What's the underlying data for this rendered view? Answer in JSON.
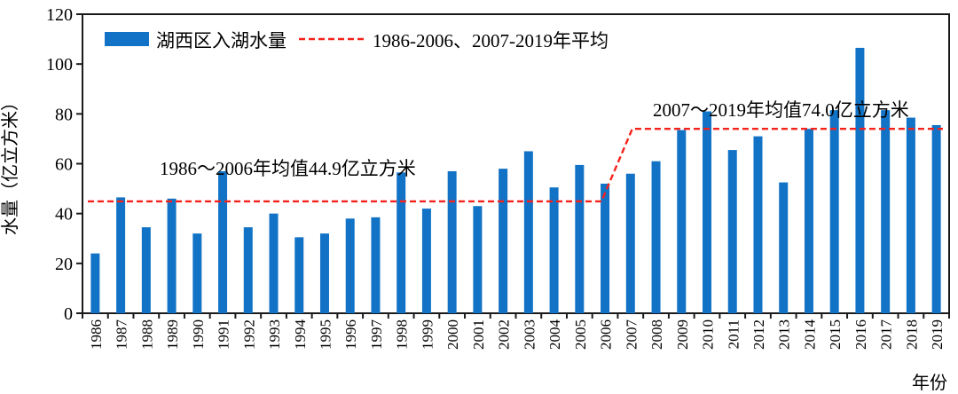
{
  "chart_data": {
    "type": "bar",
    "title": "",
    "xlabel": "年份",
    "ylabel": "水量（亿立方米）",
    "ylim": [
      0,
      120
    ],
    "ytick_interval": 20,
    "grid": false,
    "legend_position": "top-left-inside",
    "categories": [
      "1986",
      "1987",
      "1988",
      "1989",
      "1990",
      "1991",
      "1992",
      "1993",
      "1994",
      "1995",
      "1996",
      "1997",
      "1998",
      "1999",
      "2000",
      "2001",
      "2002",
      "2003",
      "2004",
      "2005",
      "2006",
      "2007",
      "2008",
      "2009",
      "2010",
      "2011",
      "2012",
      "2013",
      "2014",
      "2015",
      "2016",
      "2017",
      "2018",
      "2019"
    ],
    "series": [
      {
        "name": "湖西区入湖水量",
        "color": "#1273C6",
        "values": [
          24,
          46.5,
          34.5,
          46,
          32,
          57,
          34.5,
          40,
          30.5,
          32,
          38,
          38.5,
          56.5,
          42,
          57,
          43,
          58,
          65,
          50.5,
          59.5,
          52,
          56,
          61,
          73.5,
          81,
          65.5,
          71,
          52.5,
          74,
          81.5,
          106.5,
          81.5,
          78.5,
          75.5
        ]
      }
    ],
    "average_lines": [
      {
        "label": "1986～2006年均值44.9亿立方米",
        "value": 44.9,
        "start_category": "1986",
        "end_category": "2006"
      },
      {
        "label": "2007～2019年均值74.0亿立方米",
        "value": 74.0,
        "start_category": "2007",
        "end_category": "2019"
      }
    ],
    "legend": [
      {
        "label": "湖西区入湖水量",
        "type": "bar",
        "color": "#1273C6"
      },
      {
        "label": "1986-2006、2007-2019年平均",
        "type": "dashed-line",
        "color": "#F5221B"
      }
    ]
  },
  "colors": {
    "bar": "#1273C6",
    "average_line": "#F5221B",
    "axis": "#1a1a1a",
    "text": "#000000",
    "background": "#FFFFFF"
  }
}
